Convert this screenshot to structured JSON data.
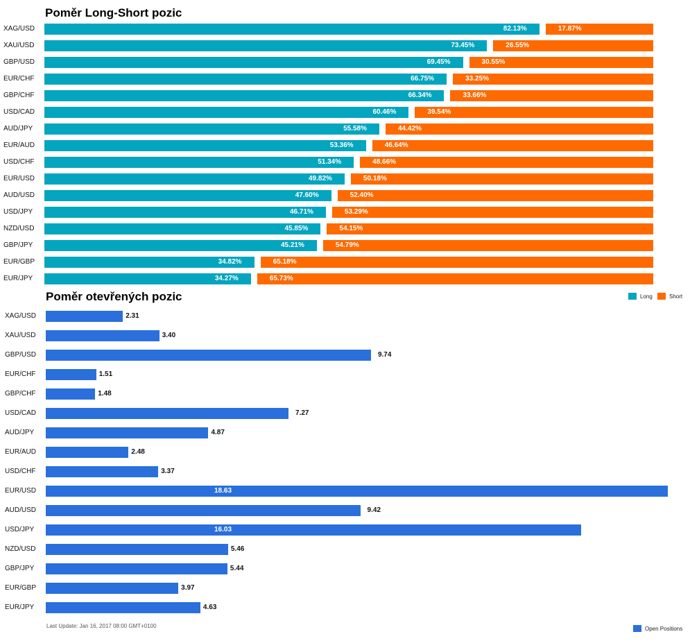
{
  "chart_data": [
    {
      "type": "bar",
      "orientation": "horizontal",
      "stacked": true,
      "title": "Poměr Long-Short pozic",
      "categories": [
        "XAG/USD",
        "XAU/USD",
        "GBP/USD",
        "EUR/CHF",
        "GBP/CHF",
        "USD/CAD",
        "AUD/JPY",
        "EUR/AUD",
        "USD/CHF",
        "EUR/USD",
        "AUD/USD",
        "USD/JPY",
        "NZD/USD",
        "GBP/JPY",
        "EUR/GBP",
        "EUR/JPY"
      ],
      "series": [
        {
          "name": "Long",
          "color": "#04a5be",
          "values": [
            82.13,
            73.45,
            69.45,
            66.75,
            66.34,
            60.46,
            55.58,
            53.36,
            51.34,
            49.82,
            47.6,
            46.71,
            45.85,
            45.21,
            34.82,
            34.27
          ],
          "labels": [
            "82.13%",
            "73.45%",
            "69.45%",
            "66.75%",
            "66.34%",
            "60.46%",
            "55.58%",
            "53.36%",
            "51.34%",
            "49.82%",
            "47.60%",
            "46.71%",
            "45.85%",
            "45.21%",
            "34.82%",
            "34.27%"
          ]
        },
        {
          "name": "Short",
          "color": "#fe6a00",
          "values": [
            17.87,
            26.55,
            30.55,
            33.25,
            33.66,
            39.54,
            44.42,
            46.64,
            48.66,
            50.18,
            52.4,
            53.29,
            54.15,
            54.79,
            65.18,
            65.73
          ],
          "labels": [
            "17.87%",
            "26.55%",
            "30.55%",
            "33.25%",
            "33.66%",
            "39.54%",
            "44.42%",
            "46.64%",
            "48.66%",
            "50.18%",
            "52.40%",
            "53.29%",
            "54.15%",
            "54.79%",
            "65.18%",
            "65.73%"
          ]
        }
      ],
      "xlim": [
        0,
        100
      ],
      "legend": "bottom-right"
    },
    {
      "type": "bar",
      "orientation": "horizontal",
      "title": "Poměr otevřených pozic",
      "categories": [
        "XAG/USD",
        "XAU/USD",
        "GBP/USD",
        "EUR/CHF",
        "GBP/CHF",
        "USD/CAD",
        "AUD/JPY",
        "EUR/AUD",
        "USD/CHF",
        "EUR/USD",
        "AUD/USD",
        "USD/JPY",
        "NZD/USD",
        "GBP/JPY",
        "EUR/GBP",
        "EUR/JPY"
      ],
      "series": [
        {
          "name": "Open Positions",
          "color": "#2a6fdc",
          "values": [
            2.31,
            3.4,
            9.74,
            1.51,
            1.48,
            7.27,
            4.87,
            2.48,
            3.37,
            18.63,
            9.42,
            16.03,
            5.46,
            5.44,
            3.97,
            4.63
          ],
          "labels": [
            "2.31",
            "3.40",
            "9.74",
            "1.51",
            "1.48",
            "7.27",
            "4.87",
            "2.48",
            "3.37",
            "18.63",
            "9.42",
            "16.03",
            "5.46",
            "5.44",
            "3.97",
            "4.63"
          ]
        }
      ],
      "xlim": [
        0,
        18.63
      ],
      "legend": "bottom-right"
    }
  ],
  "footer": "Last Update: Jan 16, 2017 08:00 GMT+0100"
}
